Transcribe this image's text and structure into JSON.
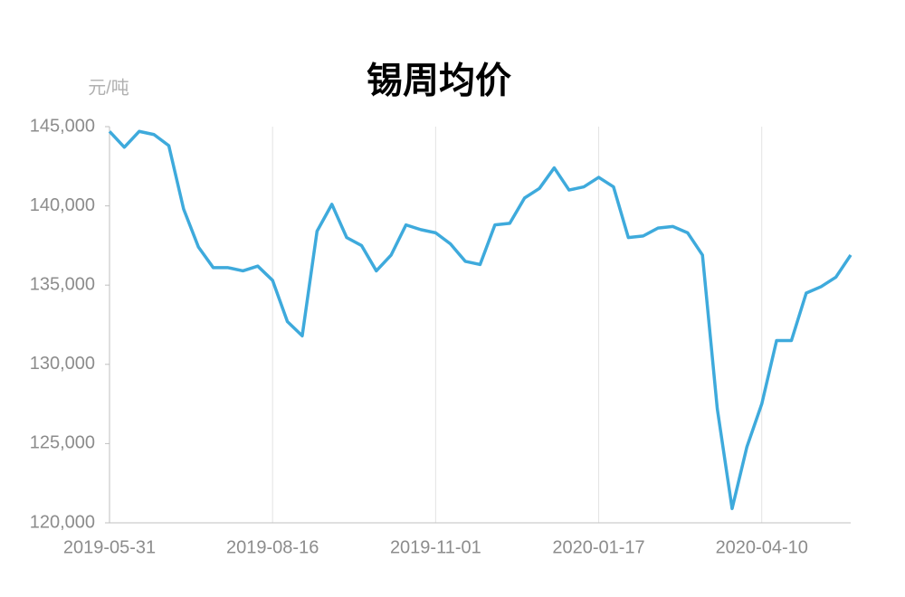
{
  "chart_data": {
    "type": "line",
    "title": "锡周均价",
    "y_label": "元/吨",
    "categories": [
      "2019-05-31",
      null,
      null,
      null,
      null,
      null,
      null,
      null,
      null,
      null,
      null,
      "2019-08-16",
      null,
      null,
      null,
      null,
      null,
      null,
      null,
      null,
      null,
      null,
      "2019-11-01",
      null,
      null,
      null,
      null,
      null,
      null,
      null,
      null,
      null,
      null,
      "2020-01-17",
      null,
      null,
      null,
      null,
      null,
      null,
      null,
      null,
      null,
      null,
      "2020-04-10",
      null,
      null,
      null,
      null,
      null,
      null
    ],
    "series": [
      {
        "name": "锡周均价",
        "color": "#3eaadc",
        "values": [
          144700,
          143700,
          144700,
          144500,
          143800,
          139800,
          137400,
          136100,
          136100,
          135900,
          136200,
          135300,
          132700,
          131800,
          138400,
          140100,
          138000,
          137500,
          135900,
          136900,
          138800,
          138500,
          138300,
          137600,
          136500,
          136300,
          138800,
          138900,
          140500,
          141100,
          142400,
          141000,
          141200,
          141800,
          141200,
          138000,
          138100,
          138600,
          138700,
          138300,
          136900,
          127200,
          120900,
          124800,
          127500,
          131500,
          131500,
          134500,
          134900,
          135500,
          136900
        ]
      }
    ],
    "ylim": [
      120000,
      145000
    ],
    "yticks": [
      {
        "value": 120000,
        "label": "120,000"
      },
      {
        "value": 125000,
        "label": "125,000"
      },
      {
        "value": 130000,
        "label": "130,000"
      },
      {
        "value": 135000,
        "label": "135,000"
      },
      {
        "value": 140000,
        "label": "140,000"
      },
      {
        "value": 145000,
        "label": "145,000"
      }
    ],
    "grid": true
  }
}
